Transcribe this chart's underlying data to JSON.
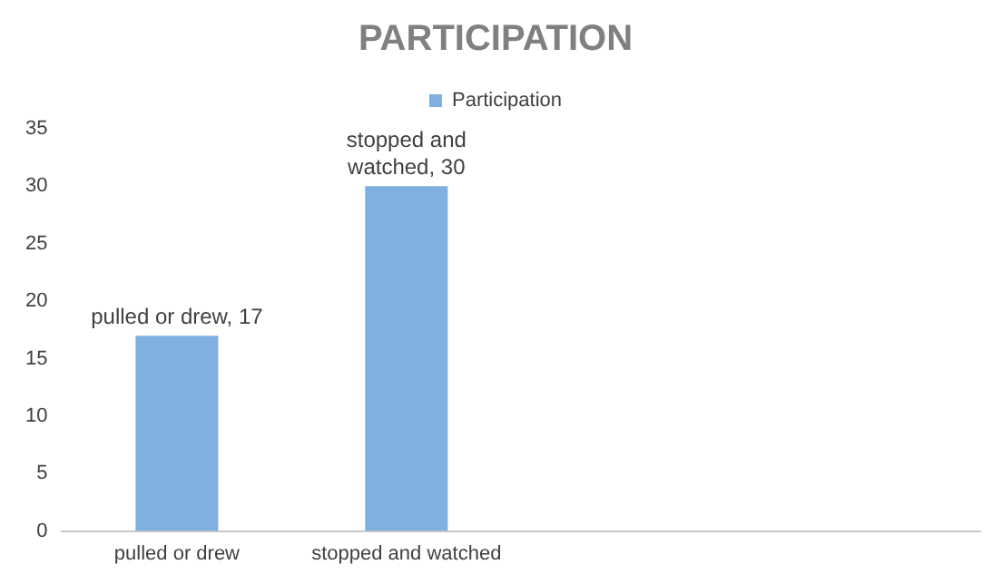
{
  "chart_data": {
    "type": "bar",
    "title": "PARTICIPATION",
    "categories": [
      "pulled or drew",
      "stopped and watched",
      null,
      null
    ],
    "series": [
      {
        "name": "Participation",
        "color": "#7fb0e0",
        "values": [
          17,
          30,
          null,
          null
        ]
      }
    ],
    "value_labels": [
      "pulled or drew, 17",
      "stopped and watched, 30",
      null,
      null
    ],
    "ylim": [
      0,
      35
    ],
    "yticks": [
      0,
      5,
      10,
      15,
      20,
      25,
      30,
      35
    ],
    "grid": false,
    "legend": "top"
  }
}
